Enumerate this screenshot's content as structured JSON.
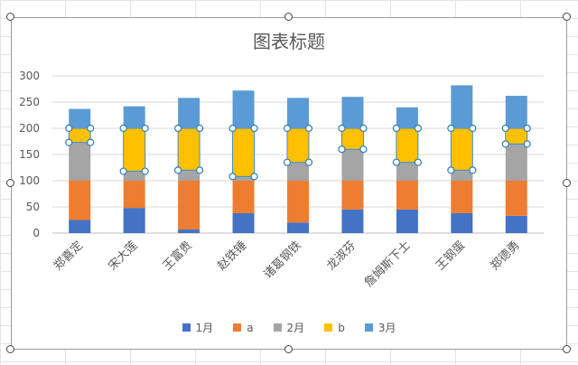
{
  "chart_data": {
    "type": "bar",
    "stacked": true,
    "title": "图表标题",
    "categories": [
      "郑喜定",
      "宋大莲",
      "王富贵",
      "赵铁锤",
      "诸葛钢铁",
      "龙淑芬",
      "詹姆斯下士",
      "王钢蛋",
      "郑德勇"
    ],
    "series": [
      {
        "name": "1月",
        "color": "#4472c4",
        "values": [
          25,
          48,
          7,
          38,
          20,
          45,
          45,
          38,
          33
        ]
      },
      {
        "name": "a",
        "color": "#ed7d31",
        "values": [
          75,
          52,
          93,
          62,
          80,
          55,
          55,
          62,
          67
        ]
      },
      {
        "name": "2月",
        "color": "#a5a5a5",
        "values": [
          73,
          18,
          20,
          8,
          35,
          60,
          35,
          20,
          70
        ]
      },
      {
        "name": "b",
        "color": "#ffc000",
        "values": [
          27,
          82,
          80,
          92,
          65,
          40,
          65,
          80,
          30
        ]
      },
      {
        "name": "3月",
        "color": "#5b9bd5",
        "values": [
          37,
          42,
          58,
          72,
          58,
          60,
          40,
          82,
          62
        ]
      }
    ],
    "ylim": [
      0,
      300
    ],
    "yticks": [
      0,
      50,
      100,
      150,
      200,
      250,
      300
    ],
    "grid": true,
    "legend_position": "bottom",
    "selected_series": "b"
  }
}
